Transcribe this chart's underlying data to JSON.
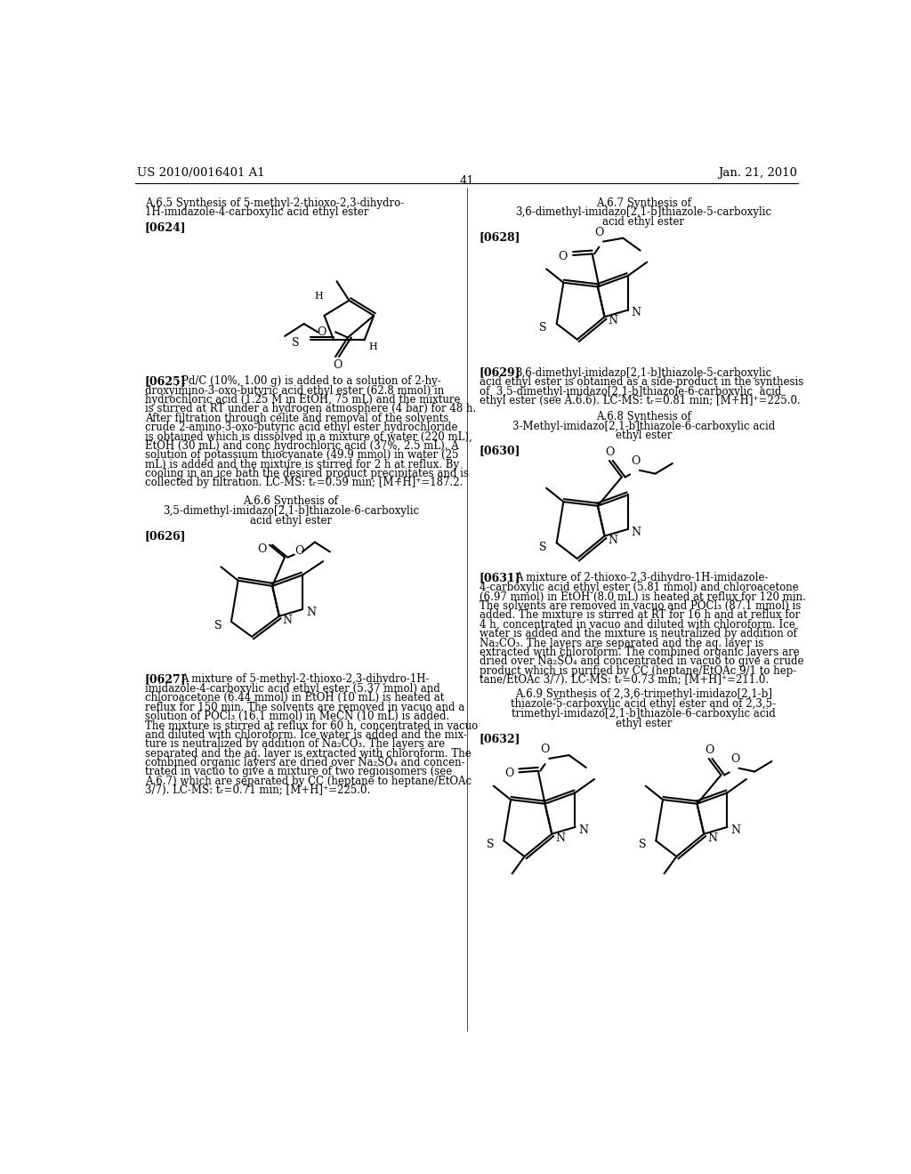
{
  "page_number": "41",
  "patent_number": "US 2010/0016401 A1",
  "patent_date": "Jan. 21, 2010",
  "background_color": "#ffffff",
  "text_color": "#000000"
}
